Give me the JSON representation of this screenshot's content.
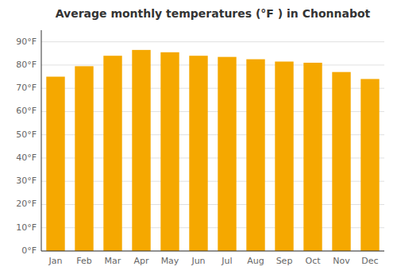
{
  "chart_data": {
    "type": "bar",
    "title": "Average monthly temperatures (°F ) in Chonnabot",
    "categories": [
      "Jan",
      "Feb",
      "Mar",
      "Apr",
      "May",
      "Jun",
      "Jul",
      "Aug",
      "Sep",
      "Oct",
      "Nov",
      "Dec"
    ],
    "values": [
      75,
      79.5,
      84,
      86.5,
      85.5,
      84,
      83.5,
      82.5,
      81.5,
      81,
      77,
      74
    ],
    "color": "#F5A800",
    "ylim": [
      0,
      95
    ],
    "yticks": [
      {
        "value": 0,
        "label": "0°F"
      },
      {
        "value": 10,
        "label": "10°F"
      },
      {
        "value": 20,
        "label": "20°F"
      },
      {
        "value": 30,
        "label": "30°F"
      },
      {
        "value": 40,
        "label": "40°F"
      },
      {
        "value": 50,
        "label": "50°F"
      },
      {
        "value": 60,
        "label": "60°F"
      },
      {
        "value": 70,
        "label": "70°F"
      },
      {
        "value": 80,
        "label": "80°F"
      },
      {
        "value": 90,
        "label": "90°F"
      }
    ],
    "grid": true
  }
}
